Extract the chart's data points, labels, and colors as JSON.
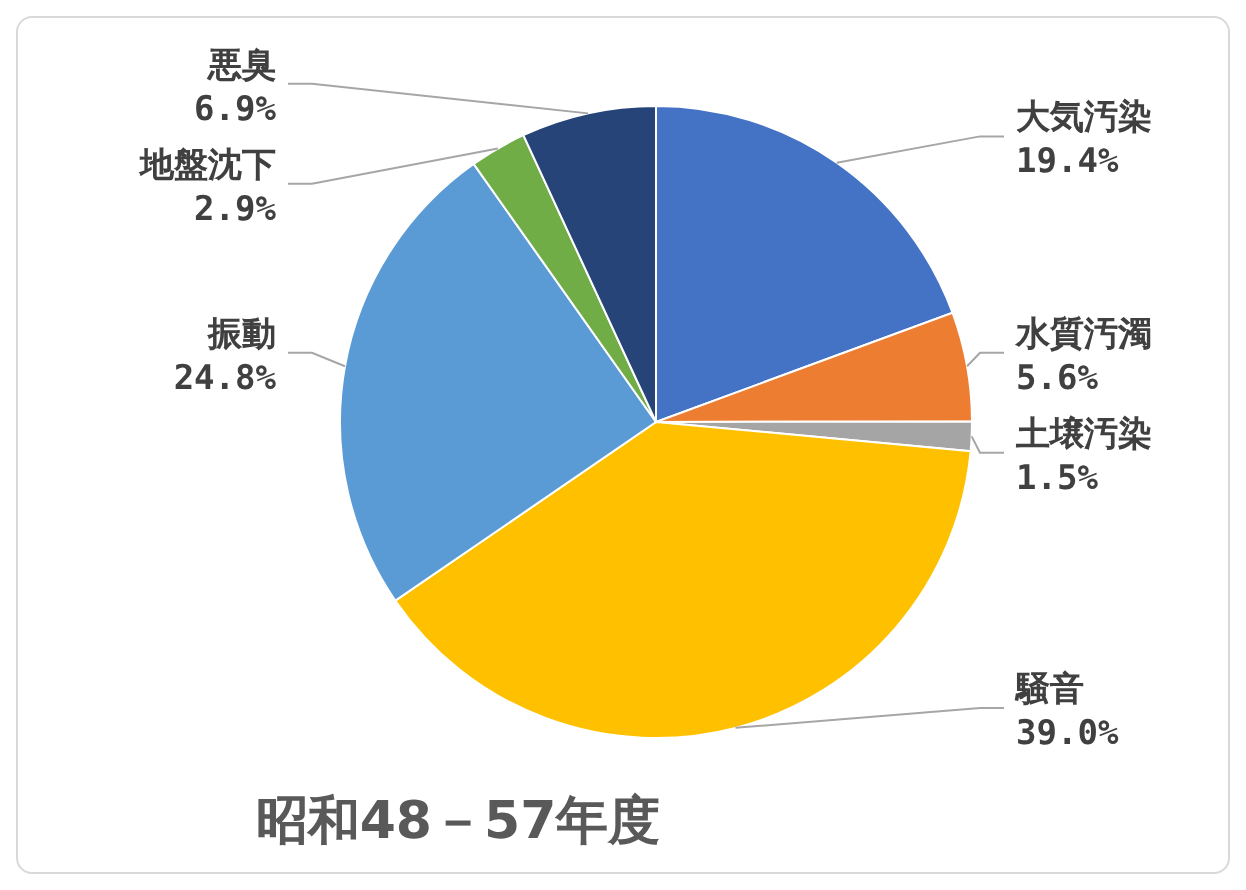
{
  "chart_data": {
    "type": "pie",
    "title": "昭和48－57年度",
    "categories": [
      "大気汚染",
      "水質汚濁",
      "土壌汚染",
      "騒音",
      "振動",
      "地盤沈下",
      "悪臭"
    ],
    "values": [
      19.4,
      5.6,
      1.5,
      39.0,
      24.8,
      2.9,
      6.9
    ],
    "value_labels": [
      "19.4%",
      "5.6%",
      "1.5%",
      "39.0%",
      "24.8%",
      "2.9%",
      "6.9%"
    ],
    "colors": [
      "#4472c4",
      "#ed7d31",
      "#a5a5a5",
      "#ffc000",
      "#5b9bd5",
      "#70ad47",
      "#264478"
    ],
    "legend": false
  }
}
